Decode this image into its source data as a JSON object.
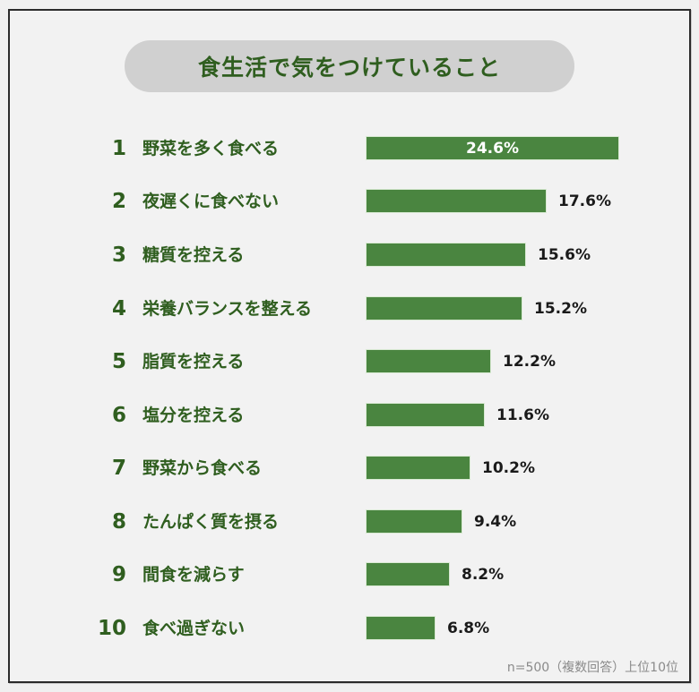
{
  "title": "食生活で気をつけていること",
  "footnote": "n=500（複数回答）上位10位",
  "colors": {
    "bar": "#4a8540",
    "text_green": "#2f5e1f",
    "title_pill_bg": "#d0d0d0",
    "value_text": "#1a1a1a",
    "footnote_text": "#8a8a8a"
  },
  "items": [
    {
      "rank": "1",
      "label": "野菜を多く食べる",
      "value": 24.6,
      "value_label": "24.6%"
    },
    {
      "rank": "2",
      "label": "夜遅くに食べない",
      "value": 17.6,
      "value_label": "17.6%"
    },
    {
      "rank": "3",
      "label": "糖質を控える",
      "value": 15.6,
      "value_label": "15.6%"
    },
    {
      "rank": "4",
      "label": "栄養バランスを整える",
      "value": 15.2,
      "value_label": "15.2%"
    },
    {
      "rank": "5",
      "label": "脂質を控える",
      "value": 12.2,
      "value_label": "12.2%"
    },
    {
      "rank": "6",
      "label": "塩分を控える",
      "value": 11.6,
      "value_label": "11.6%"
    },
    {
      "rank": "7",
      "label": "野菜から食べる",
      "value": 10.2,
      "value_label": "10.2%"
    },
    {
      "rank": "8",
      "label": "たんぱく質を摂る",
      "value": 9.4,
      "value_label": "9.4%"
    },
    {
      "rank": "9",
      "label": "間食を減らす",
      "value": 8.2,
      "value_label": "8.2%"
    },
    {
      "rank": "10",
      "label": "食べ過ぎない",
      "value": 6.8,
      "value_label": "6.8%"
    }
  ],
  "chart_data": {
    "type": "bar",
    "orientation": "horizontal",
    "title": "食生活で気をつけていること",
    "categories": [
      "野菜を多く食べる",
      "夜遅くに食べない",
      "糖質を控える",
      "栄養バランスを整える",
      "脂質を控える",
      "塩分を控える",
      "野菜から食べる",
      "たんぱく質を摂る",
      "間食を減らす",
      "食べ過ぎない"
    ],
    "values": [
      24.6,
      17.6,
      15.6,
      15.2,
      12.2,
      11.6,
      10.2,
      9.4,
      8.2,
      6.8
    ],
    "ranks": [
      1,
      2,
      3,
      4,
      5,
      6,
      7,
      8,
      9,
      10
    ],
    "unit": "%",
    "xlabel": "",
    "ylabel": "",
    "grid": false,
    "legend": null,
    "annotations": [
      "n=500（複数回答）上位10位"
    ]
  }
}
